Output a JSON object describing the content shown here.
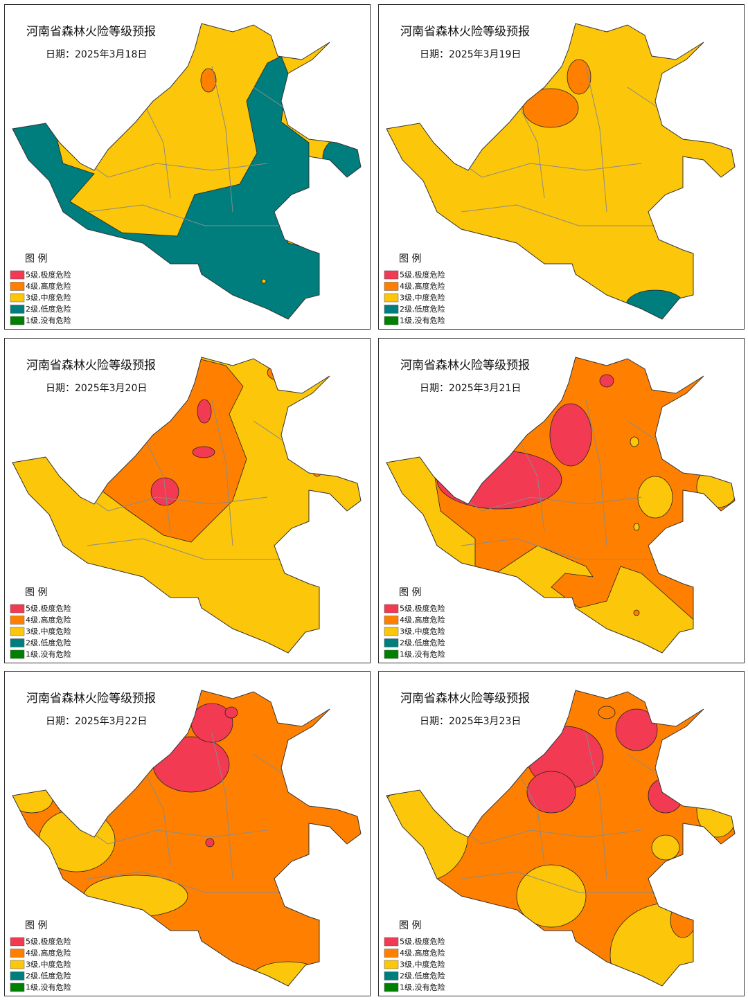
{
  "panels": [
    {
      "title": "河南省森林火险等级预报",
      "date": "日期：2025年3月18日"
    },
    {
      "title": "河南省森林火险等级预报",
      "date": "日期：2025年3月19日"
    },
    {
      "title": "河南省森林火险等级预报",
      "date": "日期：2025年3月20日"
    },
    {
      "title": "河南省森林火险等级预报",
      "date": "日期：2025年3月21日"
    },
    {
      "title": "河南省森林火险等级预报",
      "date": "日期：2025年3月22日"
    },
    {
      "title": "河南省森林火险等级预报",
      "date": "日期：2025年3月23日"
    }
  ],
  "legend": {
    "title": "图 例",
    "items": [
      {
        "label": "5级,极度危险",
        "color": "#f23a52"
      },
      {
        "label": "4级,高度危险",
        "color": "#ff8000"
      },
      {
        "label": "3级,中度危险",
        "color": "#fcc60a"
      },
      {
        "label": "2级,低度危险",
        "color": "#007d7d"
      },
      {
        "label": "1级,没有危险",
        "color": "#008000"
      }
    ]
  }
}
